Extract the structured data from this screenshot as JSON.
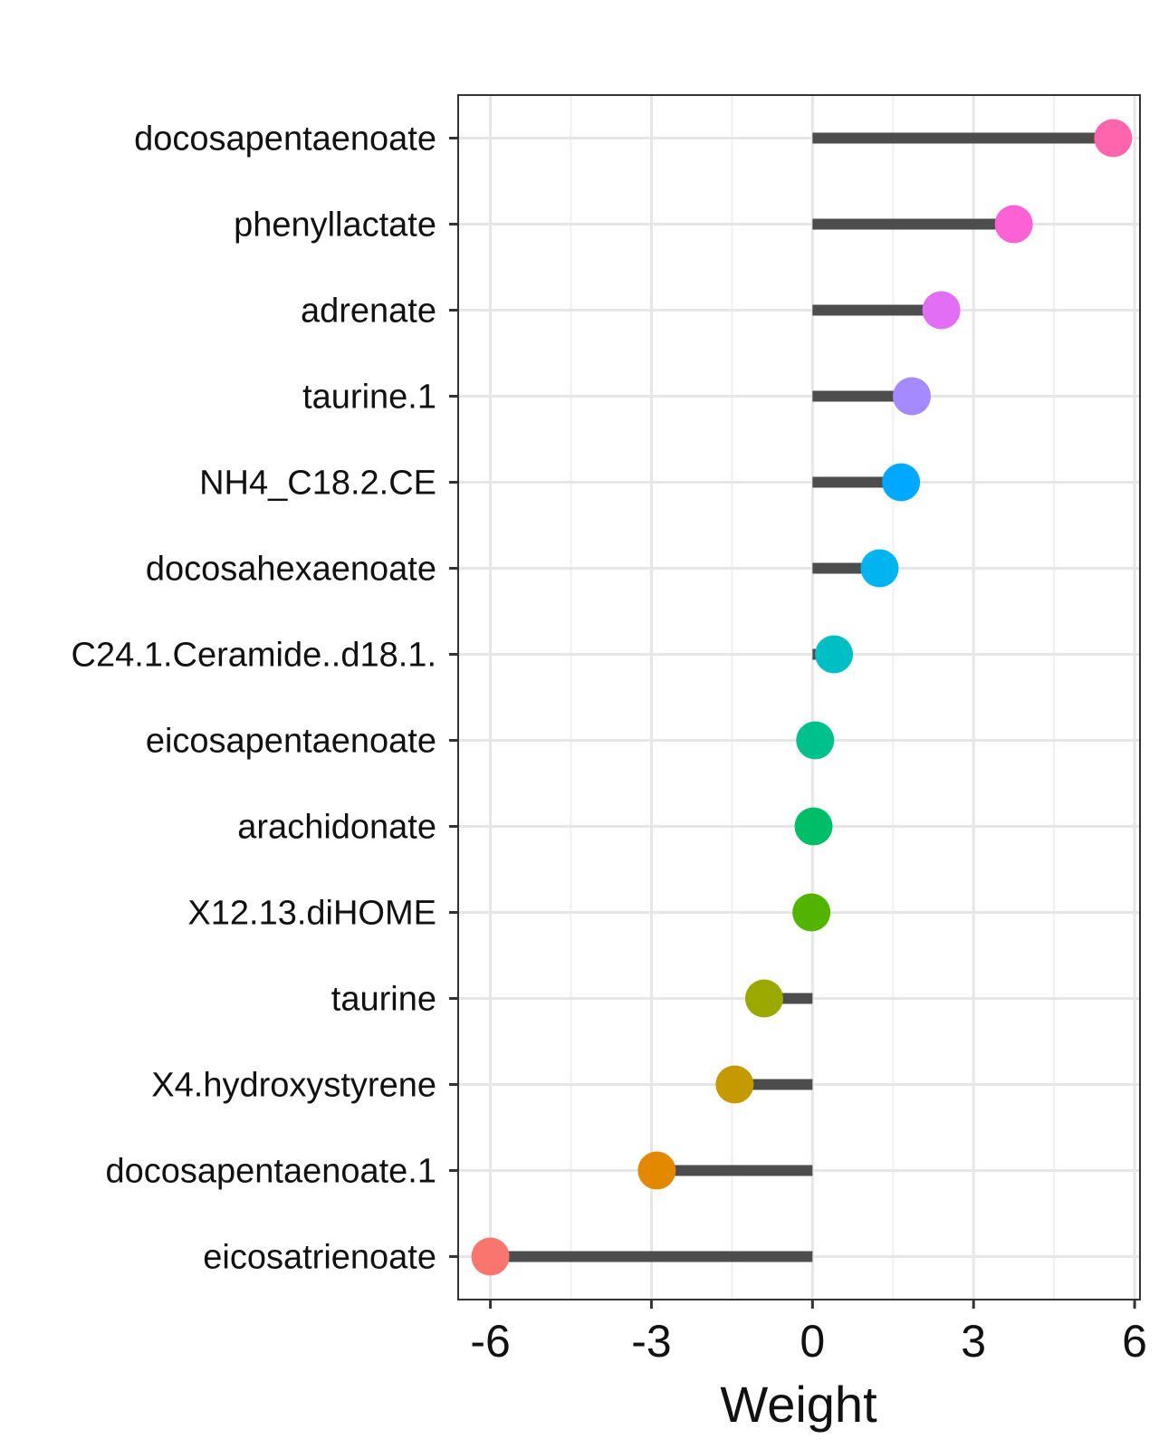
{
  "chart_data": {
    "type": "lollipop",
    "title": "",
    "xlabel": "Weight",
    "ylabel": "",
    "xlim": [
      -6.6,
      6.1
    ],
    "xticks": [
      "-6",
      "-3",
      "0",
      "3",
      "6"
    ],
    "xtick_values": [
      -6,
      -3,
      0,
      3,
      6
    ],
    "grid": true,
    "legend": "none",
    "segment_color": "#4d4d4d",
    "categories": [
      "docosapentaenoate",
      "phenyllactate",
      "adrenate",
      "taurine.1",
      "NH4_C18.2.CE",
      "docosahexaenoate",
      "C24.1.Ceramide..d18.1.",
      "eicosapentaenoate",
      "arachidonate",
      "X12.13.diHOME",
      "taurine",
      "X4.hydroxystyrene",
      "docosapentaenoate.1",
      "eicosatrienoate"
    ],
    "values": [
      5.6,
      3.75,
      2.4,
      1.85,
      1.65,
      1.25,
      0.4,
      0.05,
      0.02,
      -0.02,
      -0.9,
      -1.45,
      -2.9,
      -6.0
    ],
    "colors": [
      "#FF65AC",
      "#FC61D5",
      "#E36EF6",
      "#A58AFF",
      "#00A9FF",
      "#00B4EF",
      "#00BFC4",
      "#00C08B",
      "#00BE67",
      "#53B400",
      "#9AA800",
      "#C49A00",
      "#E38900",
      "#F8766D"
    ]
  }
}
